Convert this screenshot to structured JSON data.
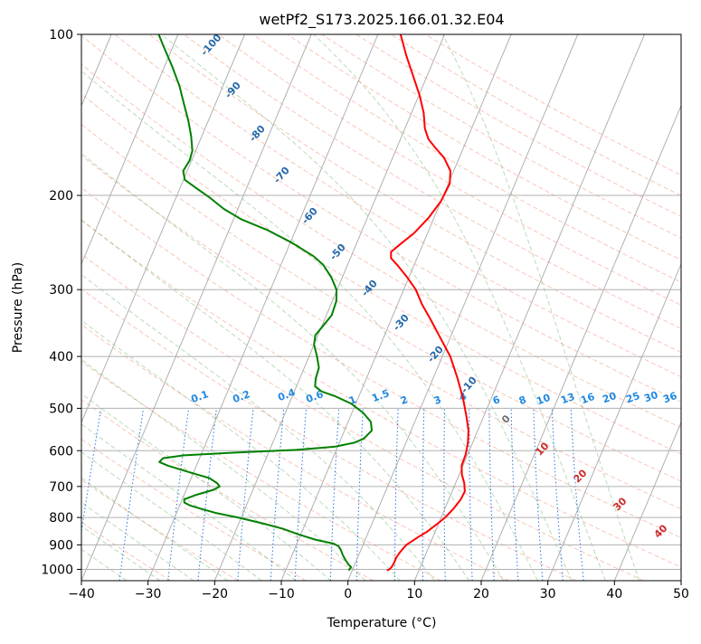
{
  "chart_data": {
    "type": "skew-t log-p",
    "title": "wetPf2_S173.2025.166.01.32.E04",
    "xlabel": "Temperature (°C)",
    "ylabel": "Pressure (hPa)",
    "xlim": [
      -40,
      50
    ],
    "ylim": [
      1050,
      100
    ],
    "y_scale": "log",
    "x_ticks": [
      "−40",
      "−30",
      "−20",
      "−10",
      "0",
      "10",
      "20",
      "30",
      "40",
      "50"
    ],
    "y_ticks": [
      "100",
      "200",
      "300",
      "400",
      "500",
      "600",
      "700",
      "800",
      "900",
      "1000"
    ],
    "grid": true,
    "dry_adiabat_labels": [
      "-100",
      "-90",
      "-80",
      "-70",
      "-60",
      "-50",
      "-40",
      "-30",
      "-20",
      "-10"
    ],
    "moist_adiabat_labels": [
      "0",
      "10",
      "20",
      "30",
      "40"
    ],
    "mixing_ratio_labels": [
      "0.1",
      "0.2",
      "0.4",
      "0.6",
      "1",
      "1.5",
      "2",
      "3",
      "4",
      "6",
      "8",
      "10",
      "13",
      "16",
      "20",
      "25",
      "30",
      "36"
    ],
    "series": [
      {
        "role": "temperature",
        "color": "#ff0000",
        "points": [
          [
            1005,
            5.2
          ],
          [
            1000,
            5.5
          ],
          [
            990,
            5.7
          ],
          [
            970,
            5.8
          ],
          [
            950,
            5.8
          ],
          [
            930,
            6.0
          ],
          [
            900,
            6.5
          ],
          [
            870,
            7.8
          ],
          [
            850,
            8.8
          ],
          [
            820,
            9.9
          ],
          [
            800,
            10.6
          ],
          [
            770,
            11.3
          ],
          [
            740,
            11.8
          ],
          [
            715,
            11.9
          ],
          [
            690,
            11.3
          ],
          [
            665,
            10.4
          ],
          [
            640,
            9.8
          ],
          [
            610,
            9.7
          ],
          [
            580,
            9.3
          ],
          [
            550,
            8.6
          ],
          [
            520,
            7.5
          ],
          [
            480,
            5.8
          ],
          [
            440,
            3.7
          ],
          [
            400,
            1.2
          ],
          [
            370,
            -1.4
          ],
          [
            340,
            -4.2
          ],
          [
            320,
            -6.3
          ],
          [
            300,
            -8.2
          ],
          [
            285,
            -10.2
          ],
          [
            270,
            -12.5
          ],
          [
            262,
            -13.9
          ],
          [
            255,
            -14.3
          ],
          [
            245,
            -13.2
          ],
          [
            235,
            -12.0
          ],
          [
            220,
            -10.8
          ],
          [
            205,
            -10.0
          ],
          [
            190,
            -9.8
          ],
          [
            180,
            -10.5
          ],
          [
            170,
            -12.3
          ],
          [
            163,
            -14.2
          ],
          [
            157,
            -15.8
          ],
          [
            150,
            -17.0
          ],
          [
            140,
            -18.2
          ],
          [
            130,
            -19.9
          ],
          [
            120,
            -22.0
          ],
          [
            110,
            -24.3
          ],
          [
            100,
            -26.6
          ]
        ]
      },
      {
        "role": "dewpoint",
        "color": "#008000",
        "points": [
          [
            1005,
            -0.5
          ],
          [
            1000,
            -0.5
          ],
          [
            990,
            -0.4
          ],
          [
            980,
            -0.9
          ],
          [
            960,
            -1.7
          ],
          [
            940,
            -2.4
          ],
          [
            920,
            -3.0
          ],
          [
            905,
            -3.6
          ],
          [
            895,
            -4.5
          ],
          [
            880,
            -7.5
          ],
          [
            860,
            -10.4
          ],
          [
            840,
            -13.0
          ],
          [
            820,
            -16.5
          ],
          [
            800,
            -20.5
          ],
          [
            785,
            -24.0
          ],
          [
            770,
            -26.7
          ],
          [
            760,
            -28.4
          ],
          [
            750,
            -29.5
          ],
          [
            740,
            -29.7
          ],
          [
            725,
            -28.1
          ],
          [
            710,
            -25.9
          ],
          [
            700,
            -25.2
          ],
          [
            690,
            -25.8
          ],
          [
            675,
            -27.3
          ],
          [
            665,
            -29.3
          ],
          [
            655,
            -31.3
          ],
          [
            640,
            -34.3
          ],
          [
            630,
            -35.8
          ],
          [
            620,
            -35.5
          ],
          [
            612,
            -32.5
          ],
          [
            605,
            -25.0
          ],
          [
            598,
            -16.0
          ],
          [
            590,
            -10.5
          ],
          [
            580,
            -7.8
          ],
          [
            570,
            -6.6
          ],
          [
            550,
            -5.9
          ],
          [
            530,
            -6.6
          ],
          [
            510,
            -8.3
          ],
          [
            490,
            -10.7
          ],
          [
            475,
            -13.5
          ],
          [
            465,
            -15.9
          ],
          [
            455,
            -17.2
          ],
          [
            440,
            -17.6
          ],
          [
            420,
            -17.8
          ],
          [
            400,
            -18.8
          ],
          [
            380,
            -20.0
          ],
          [
            365,
            -20.4
          ],
          [
            350,
            -19.8
          ],
          [
            335,
            -19.2
          ],
          [
            315,
            -19.4
          ],
          [
            300,
            -20.1
          ],
          [
            285,
            -21.6
          ],
          [
            270,
            -23.6
          ],
          [
            260,
            -25.6
          ],
          [
            245,
            -29.8
          ],
          [
            232,
            -34.3
          ],
          [
            222,
            -38.7
          ],
          [
            212,
            -42.1
          ],
          [
            202,
            -44.9
          ],
          [
            194,
            -47.5
          ],
          [
            187,
            -49.8
          ],
          [
            180,
            -50.6
          ],
          [
            172,
            -50.3
          ],
          [
            165,
            -50.5
          ],
          [
            155,
            -51.6
          ],
          [
            145,
            -53.0
          ],
          [
            135,
            -54.7
          ],
          [
            125,
            -56.5
          ],
          [
            115,
            -58.8
          ],
          [
            105,
            -61.5
          ],
          [
            100,
            -62.9
          ]
        ]
      }
    ]
  }
}
